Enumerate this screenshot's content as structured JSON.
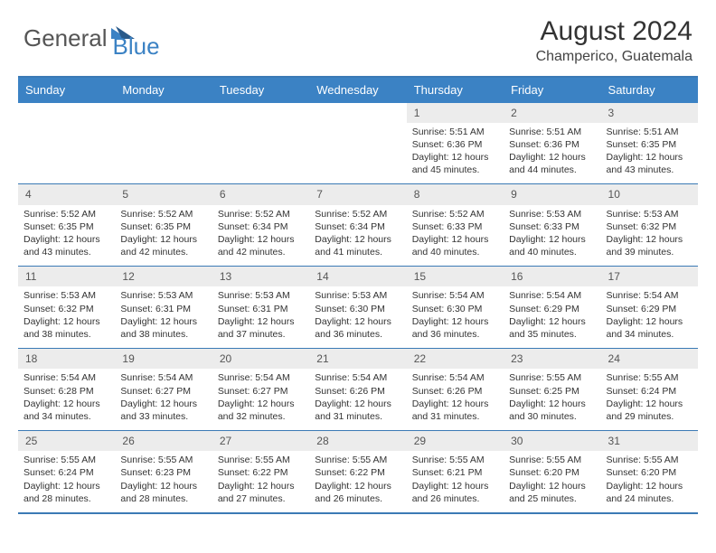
{
  "logo": {
    "text_gray": "General",
    "text_blue": "Blue"
  },
  "title": "August 2024",
  "location": "Champerico, Guatemala",
  "dayHeaders": [
    "Sunday",
    "Monday",
    "Tuesday",
    "Wednesday",
    "Thursday",
    "Friday",
    "Saturday"
  ],
  "colors": {
    "header_bg": "#3b82c4",
    "border": "#3b7ab5",
    "daynum_bg": "#ececec",
    "text": "#333333",
    "logo_gray": "#555555"
  },
  "weeks": [
    {
      "nums": [
        "",
        "",
        "",
        "",
        "1",
        "2",
        "3"
      ],
      "details": [
        "",
        "",
        "",
        "",
        "Sunrise: 5:51 AM\nSunset: 6:36 PM\nDaylight: 12 hours and 45 minutes.",
        "Sunrise: 5:51 AM\nSunset: 6:36 PM\nDaylight: 12 hours and 44 minutes.",
        "Sunrise: 5:51 AM\nSunset: 6:35 PM\nDaylight: 12 hours and 43 minutes."
      ]
    },
    {
      "nums": [
        "4",
        "5",
        "6",
        "7",
        "8",
        "9",
        "10"
      ],
      "details": [
        "Sunrise: 5:52 AM\nSunset: 6:35 PM\nDaylight: 12 hours and 43 minutes.",
        "Sunrise: 5:52 AM\nSunset: 6:35 PM\nDaylight: 12 hours and 42 minutes.",
        "Sunrise: 5:52 AM\nSunset: 6:34 PM\nDaylight: 12 hours and 42 minutes.",
        "Sunrise: 5:52 AM\nSunset: 6:34 PM\nDaylight: 12 hours and 41 minutes.",
        "Sunrise: 5:52 AM\nSunset: 6:33 PM\nDaylight: 12 hours and 40 minutes.",
        "Sunrise: 5:53 AM\nSunset: 6:33 PM\nDaylight: 12 hours and 40 minutes.",
        "Sunrise: 5:53 AM\nSunset: 6:32 PM\nDaylight: 12 hours and 39 minutes."
      ]
    },
    {
      "nums": [
        "11",
        "12",
        "13",
        "14",
        "15",
        "16",
        "17"
      ],
      "details": [
        "Sunrise: 5:53 AM\nSunset: 6:32 PM\nDaylight: 12 hours and 38 minutes.",
        "Sunrise: 5:53 AM\nSunset: 6:31 PM\nDaylight: 12 hours and 38 minutes.",
        "Sunrise: 5:53 AM\nSunset: 6:31 PM\nDaylight: 12 hours and 37 minutes.",
        "Sunrise: 5:53 AM\nSunset: 6:30 PM\nDaylight: 12 hours and 36 minutes.",
        "Sunrise: 5:54 AM\nSunset: 6:30 PM\nDaylight: 12 hours and 36 minutes.",
        "Sunrise: 5:54 AM\nSunset: 6:29 PM\nDaylight: 12 hours and 35 minutes.",
        "Sunrise: 5:54 AM\nSunset: 6:29 PM\nDaylight: 12 hours and 34 minutes."
      ]
    },
    {
      "nums": [
        "18",
        "19",
        "20",
        "21",
        "22",
        "23",
        "24"
      ],
      "details": [
        "Sunrise: 5:54 AM\nSunset: 6:28 PM\nDaylight: 12 hours and 34 minutes.",
        "Sunrise: 5:54 AM\nSunset: 6:27 PM\nDaylight: 12 hours and 33 minutes.",
        "Sunrise: 5:54 AM\nSunset: 6:27 PM\nDaylight: 12 hours and 32 minutes.",
        "Sunrise: 5:54 AM\nSunset: 6:26 PM\nDaylight: 12 hours and 31 minutes.",
        "Sunrise: 5:54 AM\nSunset: 6:26 PM\nDaylight: 12 hours and 31 minutes.",
        "Sunrise: 5:55 AM\nSunset: 6:25 PM\nDaylight: 12 hours and 30 minutes.",
        "Sunrise: 5:55 AM\nSunset: 6:24 PM\nDaylight: 12 hours and 29 minutes."
      ]
    },
    {
      "nums": [
        "25",
        "26",
        "27",
        "28",
        "29",
        "30",
        "31"
      ],
      "details": [
        "Sunrise: 5:55 AM\nSunset: 6:24 PM\nDaylight: 12 hours and 28 minutes.",
        "Sunrise: 5:55 AM\nSunset: 6:23 PM\nDaylight: 12 hours and 28 minutes.",
        "Sunrise: 5:55 AM\nSunset: 6:22 PM\nDaylight: 12 hours and 27 minutes.",
        "Sunrise: 5:55 AM\nSunset: 6:22 PM\nDaylight: 12 hours and 26 minutes.",
        "Sunrise: 5:55 AM\nSunset: 6:21 PM\nDaylight: 12 hours and 26 minutes.",
        "Sunrise: 5:55 AM\nSunset: 6:20 PM\nDaylight: 12 hours and 25 minutes.",
        "Sunrise: 5:55 AM\nSunset: 6:20 PM\nDaylight: 12 hours and 24 minutes."
      ]
    }
  ]
}
